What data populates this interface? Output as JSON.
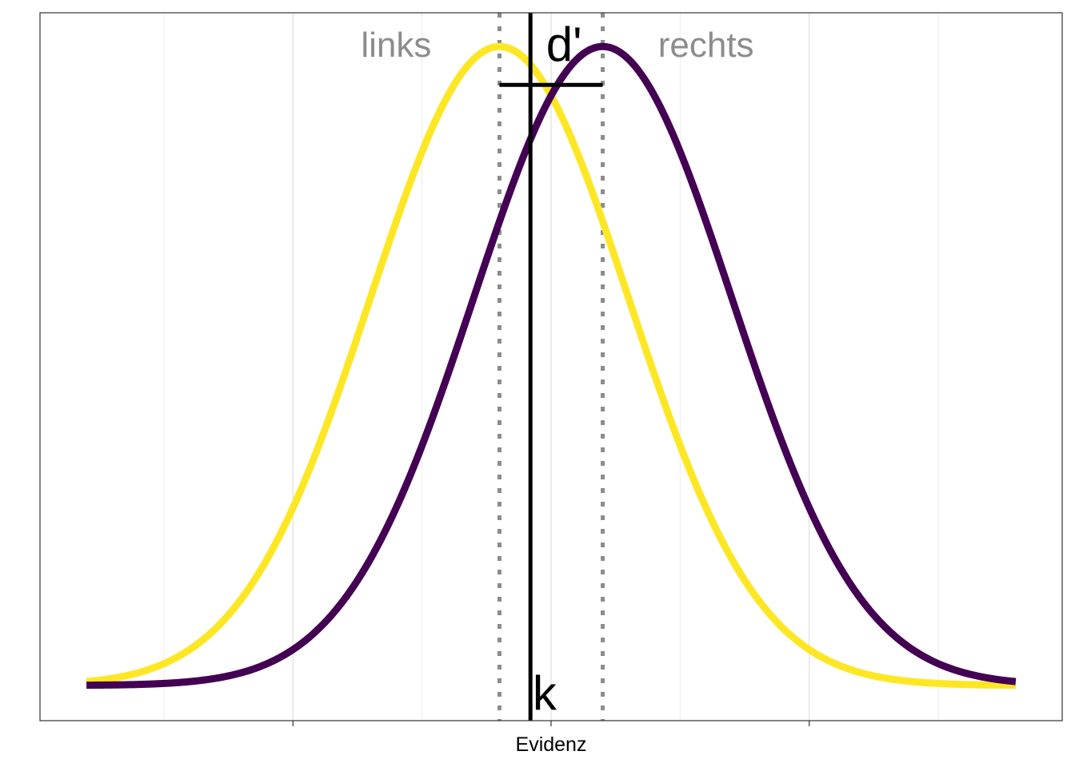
{
  "chart_data": {
    "type": "line",
    "xlabel": "Evidenz",
    "ylabel": "",
    "xlim": [
      -3.6,
      3.6
    ],
    "ylim": [
      -0.022,
      0.42
    ],
    "x_ticks": [
      -2,
      0,
      2
    ],
    "x_tick_labels": [
      "",
      "",
      ""
    ],
    "grid_major_x": [
      -2,
      0,
      2
    ],
    "grid_minor_x": [
      -3,
      -1,
      1,
      3
    ],
    "grid": true,
    "legend": "none",
    "series": [
      {
        "distribution": "normal",
        "mean": -0.4,
        "sd": 1,
        "color": "#FDE725",
        "x_range": [
          -3.6,
          3.6
        ]
      },
      {
        "distribution": "normal",
        "mean": 0.4,
        "sd": 1,
        "color": "#440154",
        "x_range": [
          -3.6,
          3.6
        ]
      }
    ],
    "vlines": {
      "means": {
        "x": [
          -0.4,
          0.4
        ],
        "style": "dotted",
        "color": "#8c8c8c"
      },
      "criterion": {
        "x": -0.16,
        "style": "solid",
        "color": "#000000"
      }
    },
    "dprime_segment": {
      "x": [
        -0.4,
        0.4
      ],
      "y": 0.375
    },
    "annotations": [
      {
        "id": "links",
        "text": "links",
        "x": -1.2,
        "y": 0.4,
        "color": "#8c8c8c"
      },
      {
        "id": "rechts",
        "text": "rechts",
        "x": 1.2,
        "y": 0.4,
        "color": "#8c8c8c"
      },
      {
        "id": "dprime",
        "text": "d'",
        "x": 0.1,
        "y": 0.4,
        "color": "#000000"
      },
      {
        "id": "k",
        "text": "k",
        "x": -0.05,
        "y": -0.005,
        "color": "#000000"
      }
    ]
  }
}
